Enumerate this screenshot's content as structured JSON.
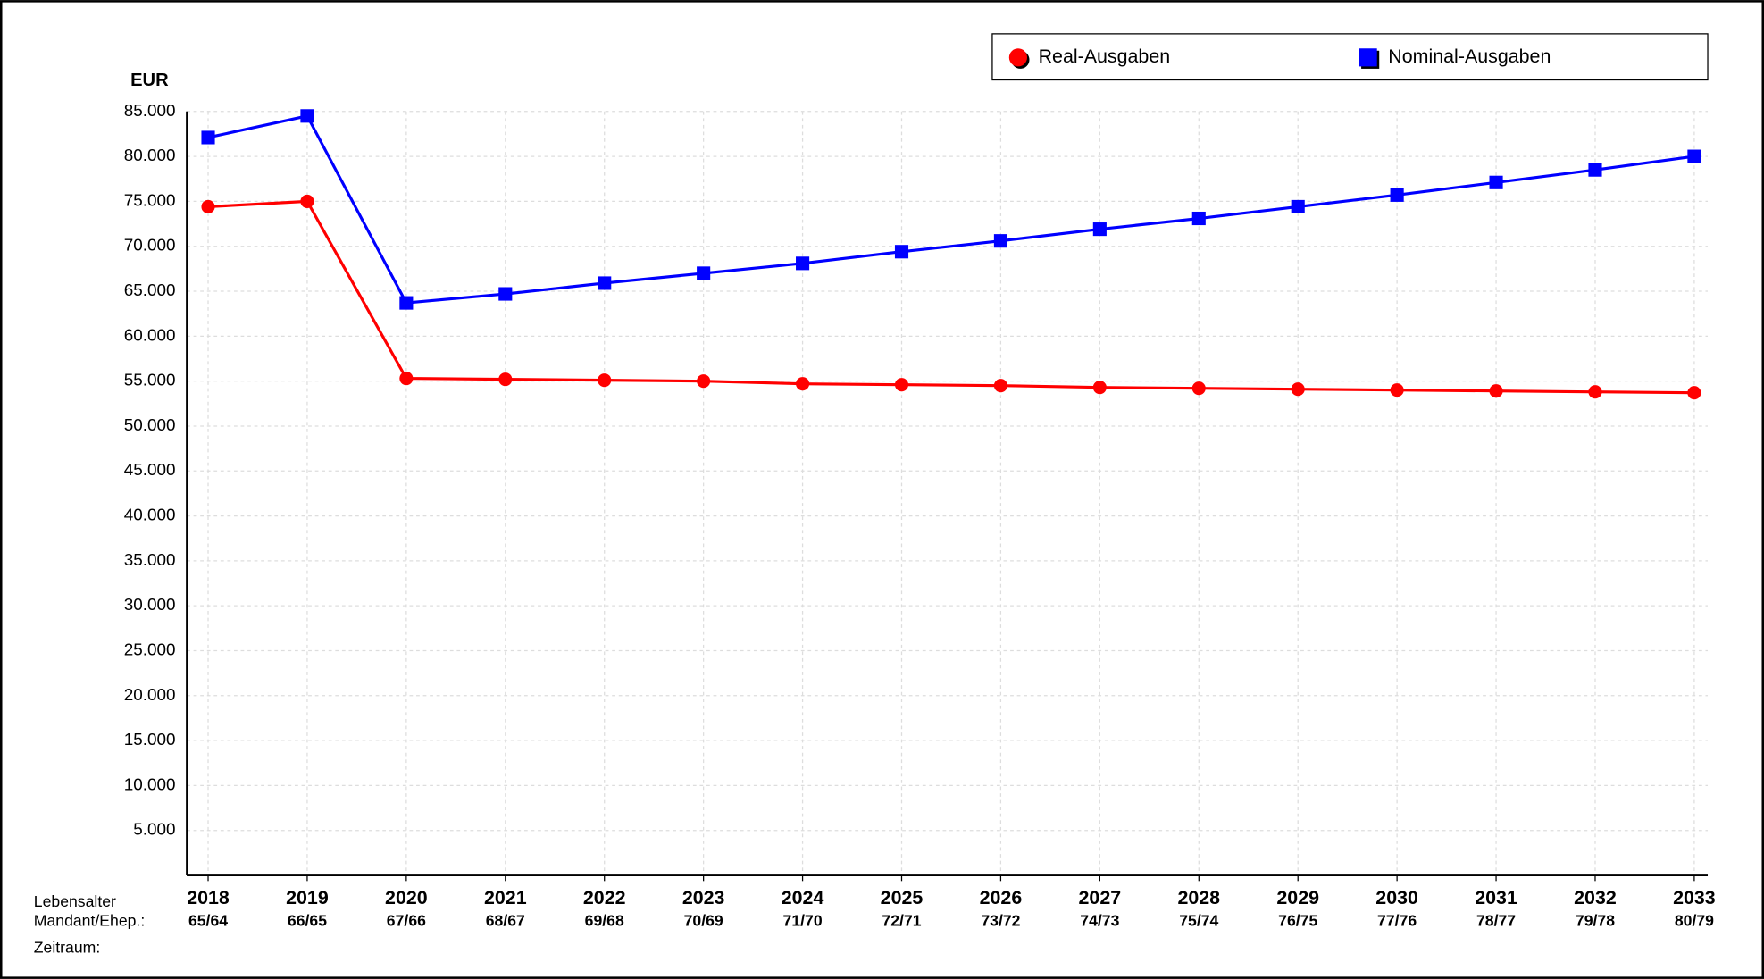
{
  "chart_data": {
    "type": "line",
    "y_unit": "EUR",
    "row_labels": [
      "Lebensalter",
      "Mandant/Ehep.:",
      "Zeitraum:"
    ],
    "categories": [
      "2018",
      "2019",
      "2020",
      "2021",
      "2022",
      "2023",
      "2024",
      "2025",
      "2026",
      "2027",
      "2028",
      "2029",
      "2030",
      "2031",
      "2032",
      "2033"
    ],
    "age_labels": [
      "65/64",
      "66/65",
      "67/66",
      "68/67",
      "69/68",
      "70/69",
      "71/70",
      "72/71",
      "73/72",
      "74/73",
      "75/74",
      "76/75",
      "77/76",
      "78/77",
      "79/78",
      "80/79"
    ],
    "series": [
      {
        "name": "Real-Ausgaben",
        "color": "#ff0000",
        "marker": "circle",
        "values": [
          74400,
          75000,
          55300,
          55200,
          55100,
          55000,
          54700,
          54600,
          54500,
          54300,
          54200,
          54100,
          54000,
          53900,
          53800,
          53700
        ]
      },
      {
        "name": "Nominal-Ausgaben",
        "color": "#0000ff",
        "marker": "square",
        "values": [
          82100,
          84500,
          63700,
          64700,
          65900,
          67000,
          68100,
          69400,
          70600,
          71900,
          73100,
          74400,
          75700,
          77100,
          78500,
          80000
        ]
      }
    ],
    "ylim": [
      0,
      85000
    ],
    "yticks": [
      {
        "value": 5000,
        "label": "5.000"
      },
      {
        "value": 10000,
        "label": "10.000"
      },
      {
        "value": 15000,
        "label": "15.000"
      },
      {
        "value": 20000,
        "label": "20.000"
      },
      {
        "value": 25000,
        "label": "25.000"
      },
      {
        "value": 30000,
        "label": "30.000"
      },
      {
        "value": 35000,
        "label": "35.000"
      },
      {
        "value": 40000,
        "label": "40.000"
      },
      {
        "value": 45000,
        "label": "45.000"
      },
      {
        "value": 50000,
        "label": "50.000"
      },
      {
        "value": 55000,
        "label": "55.000"
      },
      {
        "value": 60000,
        "label": "60.000"
      },
      {
        "value": 65000,
        "label": "65.000"
      },
      {
        "value": 70000,
        "label": "70.000"
      },
      {
        "value": 75000,
        "label": "75.000"
      },
      {
        "value": 80000,
        "label": "80.000"
      },
      {
        "value": 85000,
        "label": "85.000"
      }
    ],
    "grid": true,
    "legend": "top-right"
  }
}
